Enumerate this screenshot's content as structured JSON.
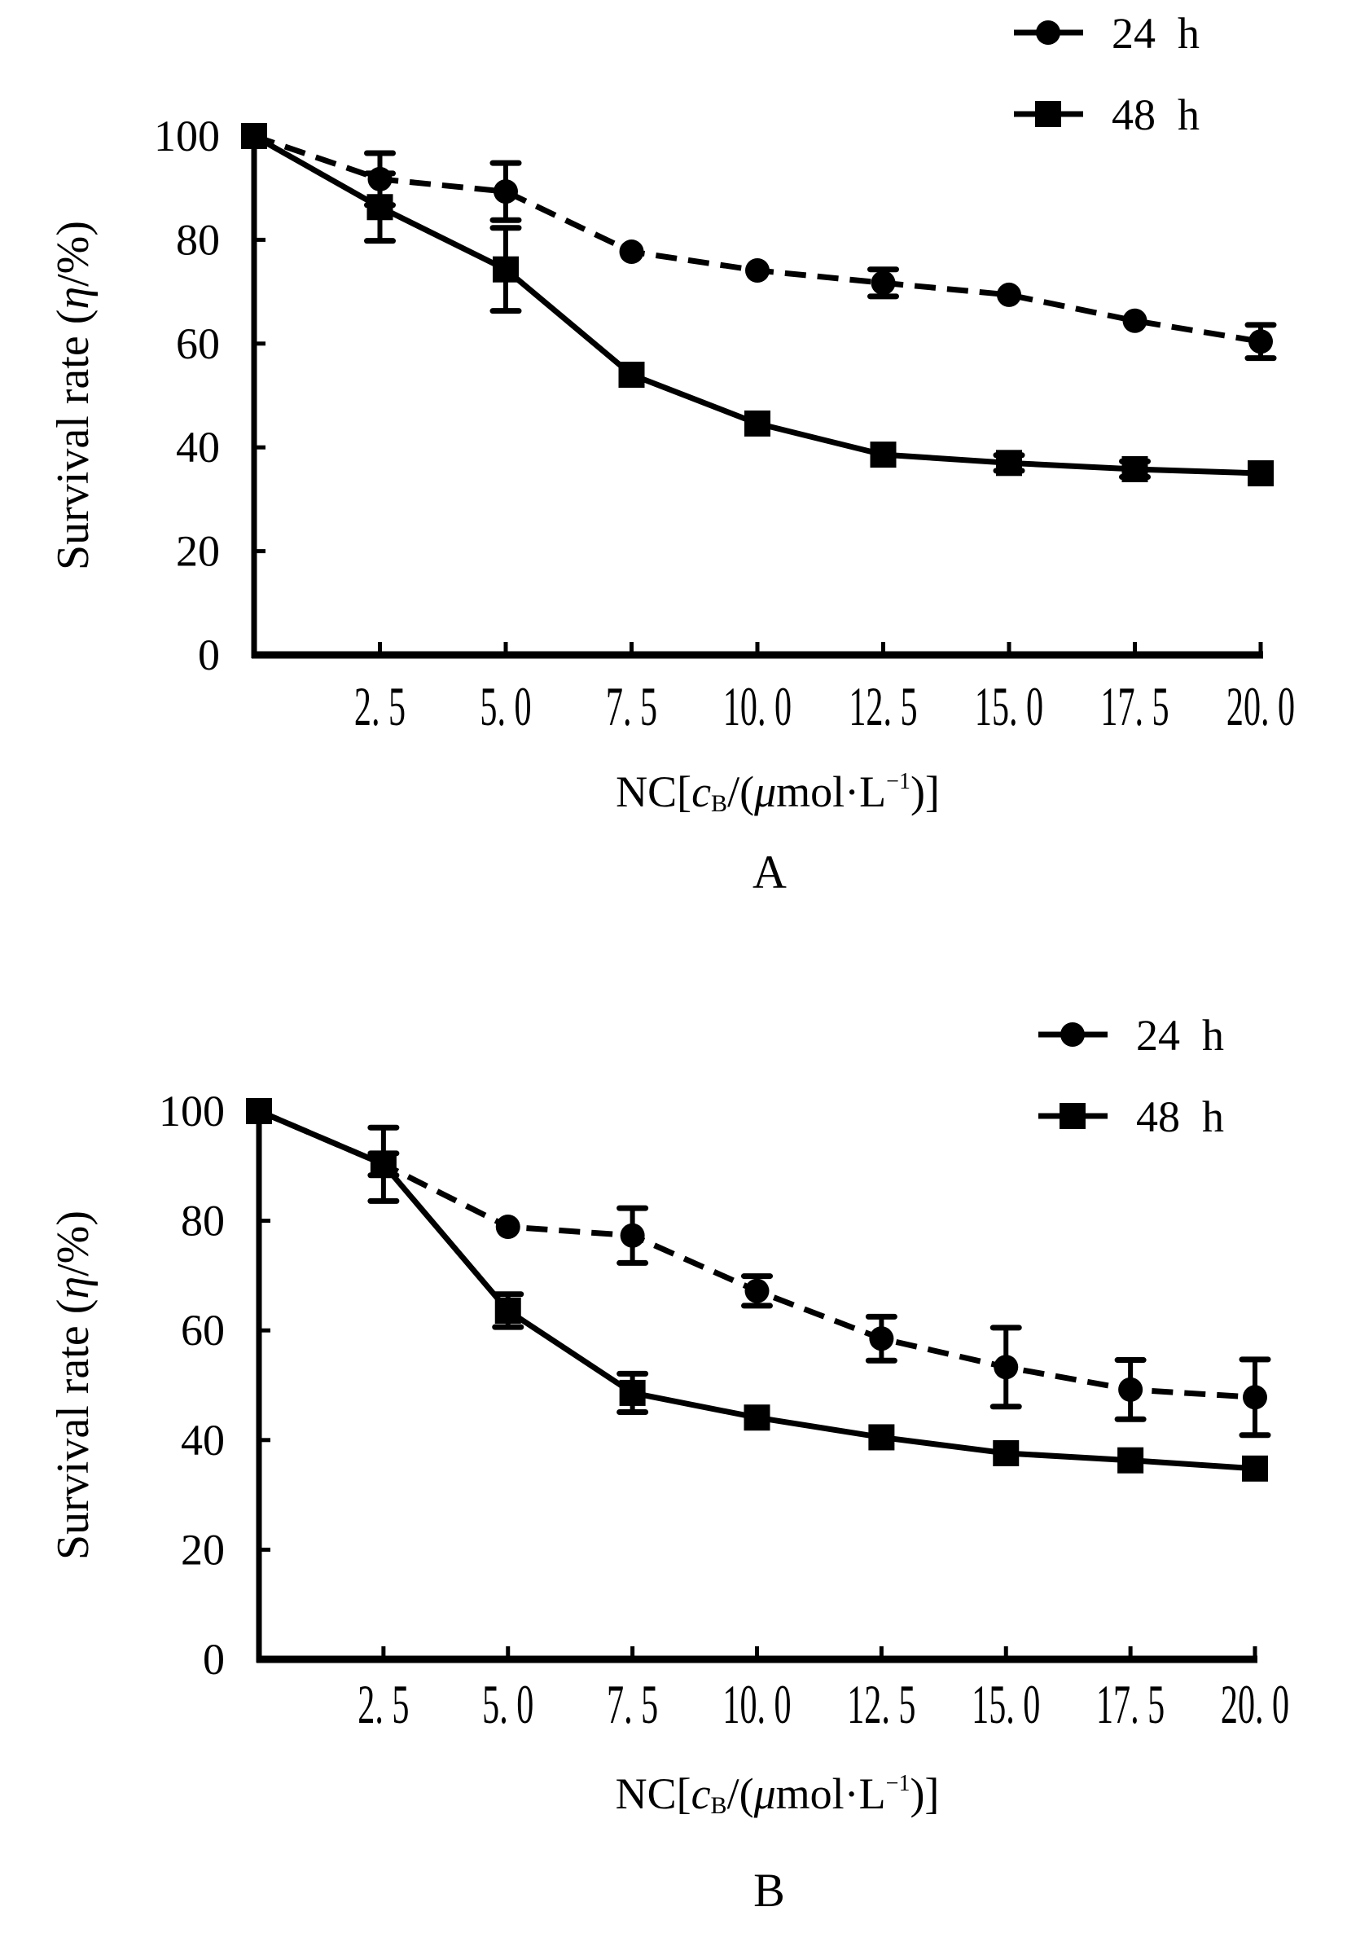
{
  "chart_data": [
    {
      "panel_label": "A",
      "type": "line",
      "title": "",
      "xlabel": "NC[cB/(μmol·L⁻¹)]",
      "xlabel_parts": {
        "prefix": "NC[",
        "var": "c",
        "sub": "B",
        "unit_open": "/(",
        "mu": "μ",
        "unit": "mol·L",
        "sup": "−1",
        "close": ")]"
      },
      "ylabel": "Survival rate (η/%)",
      "ylabel_parts": {
        "text": "Survival rate (",
        "var": "η",
        "rest": "/%)"
      },
      "x": [
        0,
        2.5,
        5.0,
        7.5,
        10.0,
        12.5,
        15.0,
        17.5,
        20.0
      ],
      "x_tick_labels": [
        "2. 5",
        "5. 0",
        "7. 5",
        "10. 0",
        "12. 5",
        "15. 0",
        "17. 5",
        "20. 0"
      ],
      "y_ticks": [
        0,
        20,
        40,
        60,
        80,
        100
      ],
      "y_tick_labels": [
        "0",
        "20",
        "40",
        "60",
        "80",
        "100"
      ],
      "xlim": [
        0,
        20
      ],
      "ylim": [
        0,
        100
      ],
      "grid": false,
      "legend_position": "top-right",
      "series": [
        {
          "name": "24  h",
          "marker": "circle",
          "line": "dashed",
          "values": [
            100,
            91.7,
            89.3,
            77.7,
            74.1,
            71.7,
            69.4,
            64.4,
            60.4
          ],
          "errors": [
            0,
            5,
            5.5,
            0,
            0,
            2.6,
            0,
            0,
            3.2
          ]
        },
        {
          "name": "48  h",
          "marker": "square",
          "line": "solid",
          "values": [
            100,
            86.3,
            74.3,
            54.0,
            44.6,
            38.6,
            37.0,
            35.8,
            35.0
          ],
          "errors": [
            0,
            6.5,
            8,
            0,
            0,
            0,
            1.5,
            1.5,
            0
          ]
        }
      ]
    },
    {
      "panel_label": "B",
      "type": "line",
      "title": "",
      "xlabel": "NC[cB/(μmol·L⁻¹)]",
      "xlabel_parts": {
        "prefix": "NC[",
        "var": "c",
        "sub": "B",
        "unit_open": "/(",
        "mu": "μ",
        "unit": "mol·L",
        "sup": "−1",
        "close": ")]"
      },
      "ylabel": "Survival rate (η/%)",
      "ylabel_parts": {
        "text": "Survival rate (",
        "var": "η",
        "rest": "/%)"
      },
      "x": [
        0,
        2.5,
        5.0,
        7.5,
        10.0,
        12.5,
        15.0,
        17.5,
        20.0
      ],
      "x_tick_labels": [
        "2. 5",
        "5. 0",
        "7. 5",
        "10. 0",
        "12. 5",
        "15. 0",
        "17. 5",
        "20. 0"
      ],
      "y_ticks": [
        0,
        20,
        40,
        60,
        80,
        100
      ],
      "y_tick_labels": [
        "0",
        "20",
        "40",
        "60",
        "80",
        "100"
      ],
      "xlim": [
        0,
        20
      ],
      "ylim": [
        0,
        100
      ],
      "grid": false,
      "legend_position": "top-right",
      "series": [
        {
          "name": "24  h",
          "marker": "circle",
          "line": "dashed",
          "values": [
            100,
            90.3,
            78.9,
            77.3,
            67.2,
            58.5,
            53.3,
            49.2,
            47.8
          ],
          "errors": [
            0,
            6.7,
            0,
            5,
            2.7,
            4,
            7.2,
            5.4,
            6.9
          ]
        },
        {
          "name": "48  h",
          "marker": "square",
          "line": "solid",
          "values": [
            100,
            90.3,
            63.6,
            48.6,
            44.1,
            40.5,
            37.6,
            36.3,
            34.8
          ],
          "errors": [
            0,
            2,
            3,
            3.5,
            0,
            0,
            0,
            0,
            0
          ]
        }
      ]
    }
  ]
}
